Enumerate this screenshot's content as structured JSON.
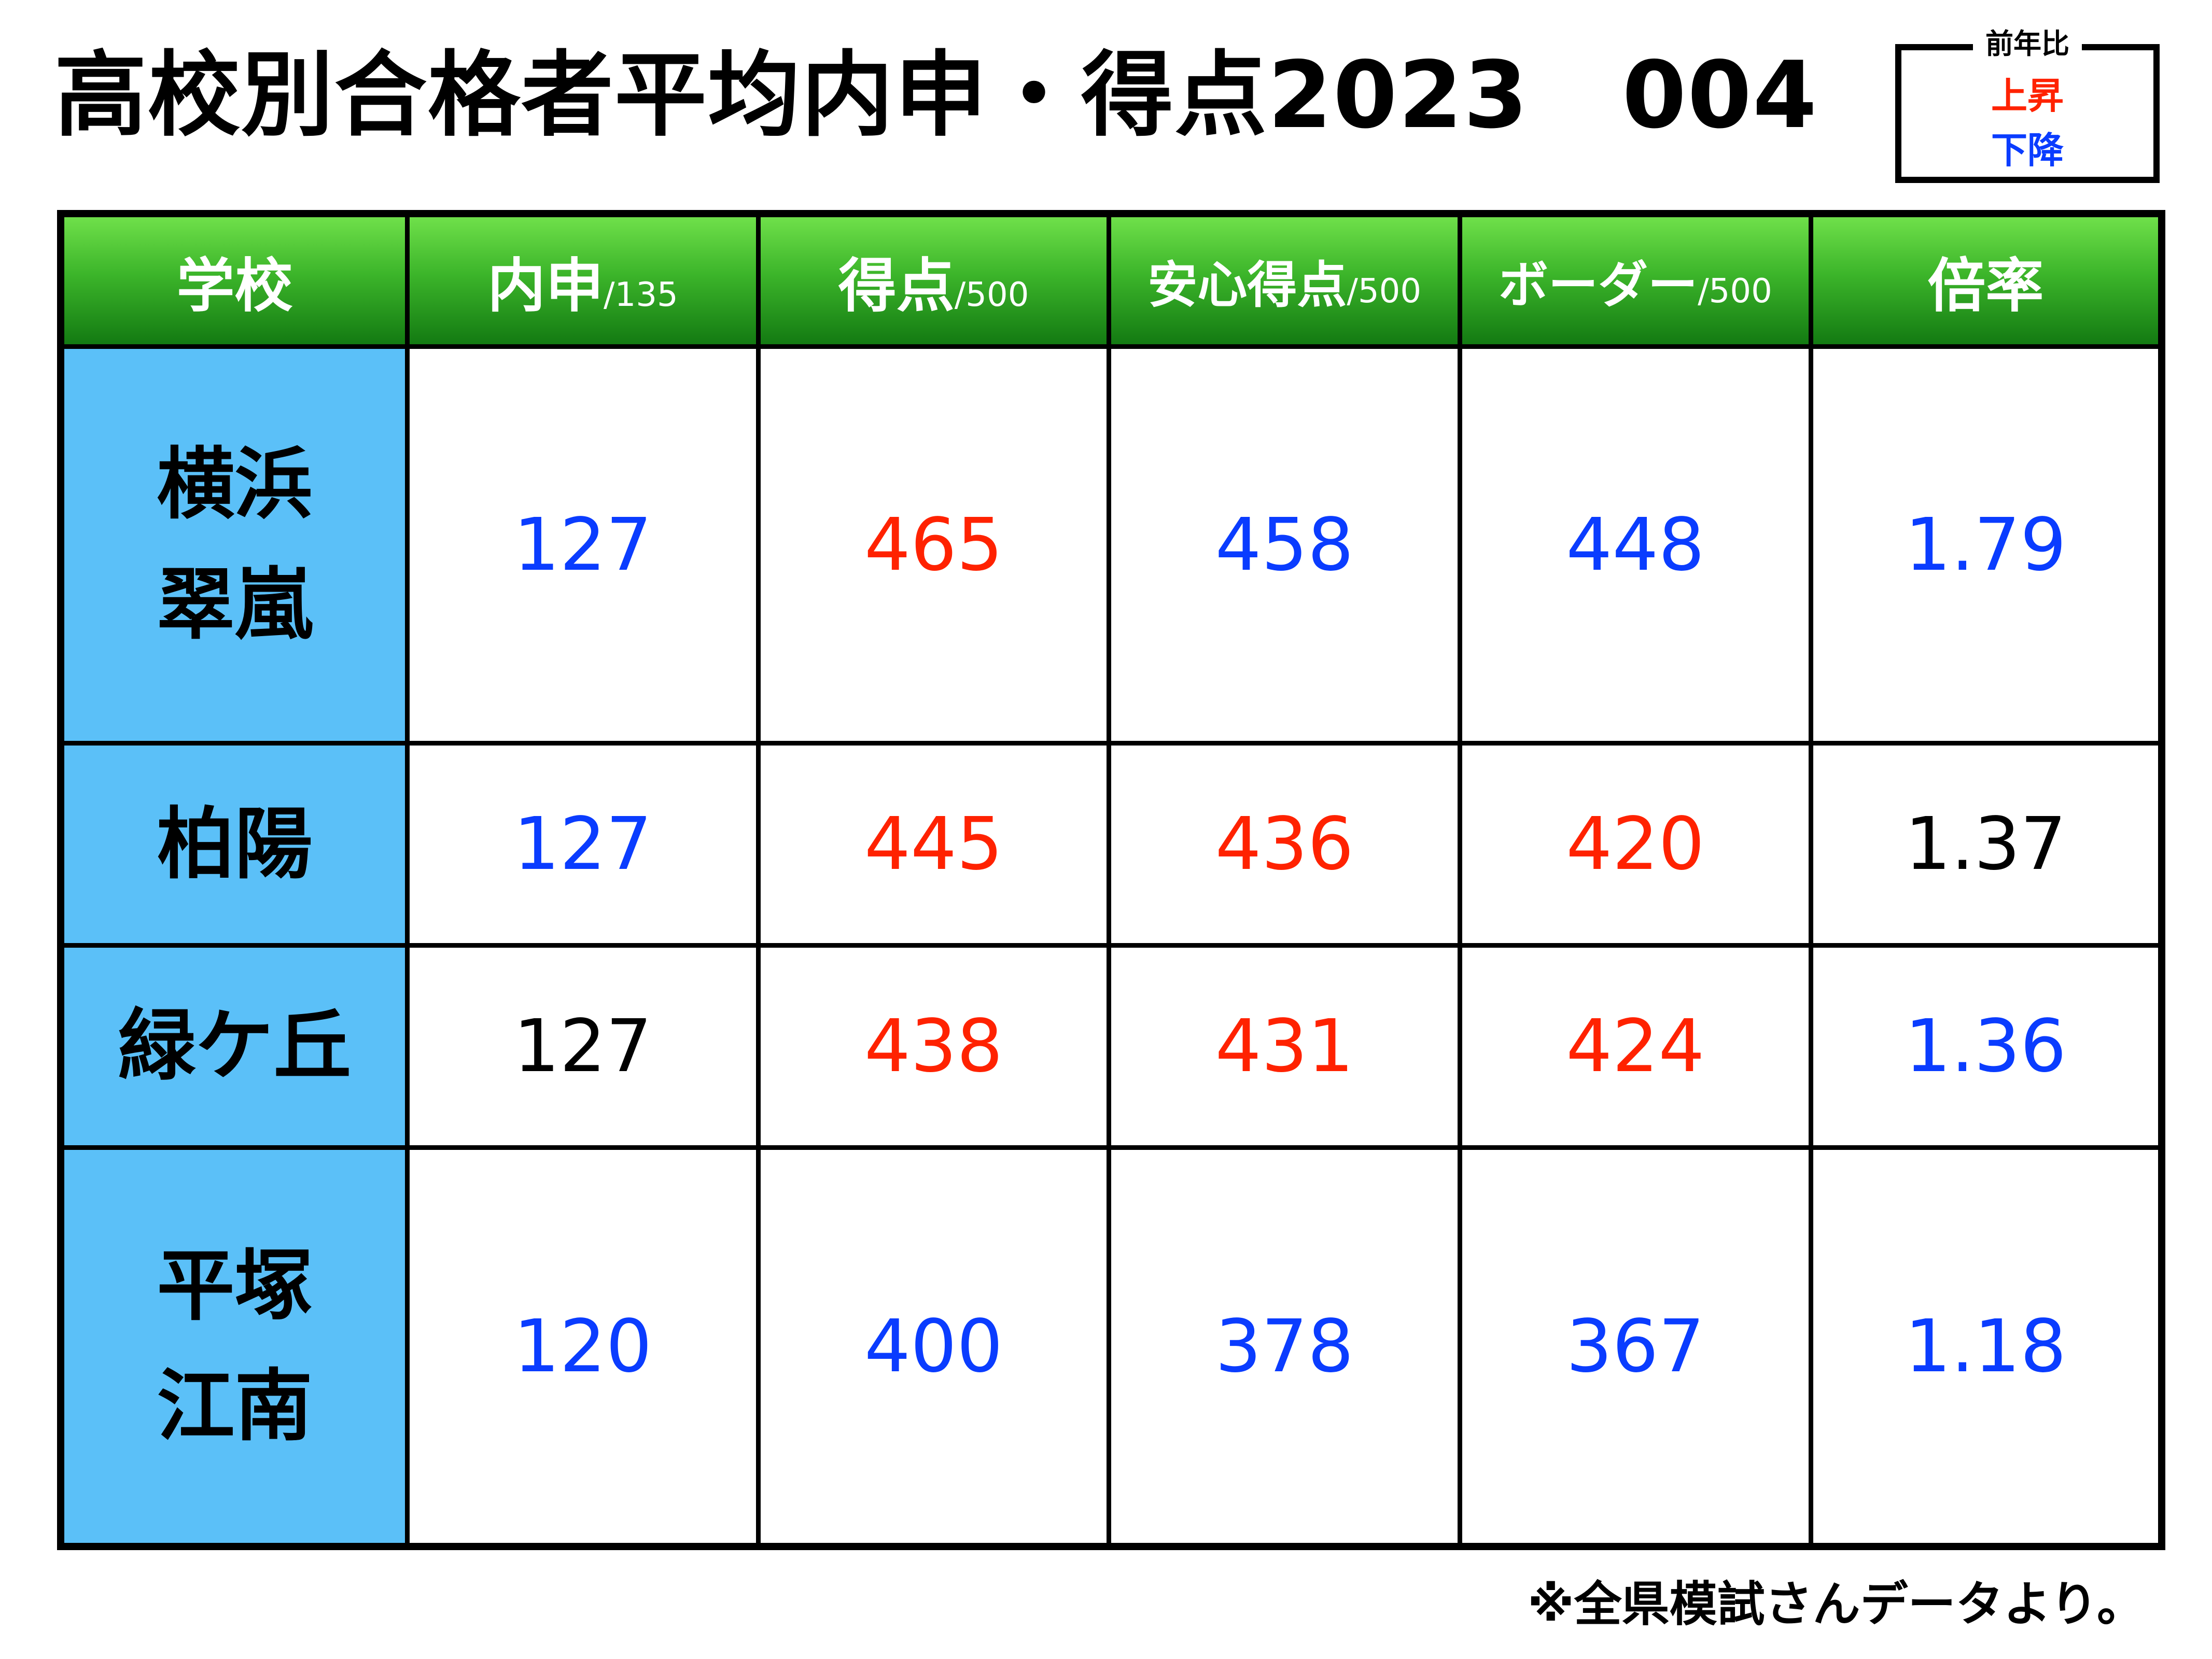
{
  "title": "高校別合格者平均内申・得点2023　004",
  "legend": {
    "heading": "前年比",
    "up_label": "上昇",
    "down_label": "下降",
    "colors": {
      "up": "#ff2200",
      "down": "#0a3cff",
      "same": "#000000"
    }
  },
  "table": {
    "headers": [
      {
        "label": "学校",
        "unit": ""
      },
      {
        "label": "内申",
        "unit": "/135"
      },
      {
        "label": "得点",
        "unit": "/500"
      },
      {
        "label": "安心得点",
        "unit": "/500"
      },
      {
        "label": "ボーダー",
        "unit": "/500"
      },
      {
        "label": "倍率",
        "unit": ""
      }
    ],
    "rows": [
      {
        "school_line1": "横浜",
        "school_line2": "翠嵐",
        "naishin": "127",
        "naishin_trend": "down",
        "score": "465",
        "score_trend": "up",
        "safe_score": "458",
        "safe_score_trend": "down",
        "border": "448",
        "border_trend": "down",
        "ratio": "1.79",
        "ratio_trend": "down"
      },
      {
        "school_line1": "柏陽",
        "school_line2": "",
        "naishin": "127",
        "naishin_trend": "down",
        "score": "445",
        "score_trend": "up",
        "safe_score": "436",
        "safe_score_trend": "up",
        "border": "420",
        "border_trend": "up",
        "ratio": "1.37",
        "ratio_trend": "same"
      },
      {
        "school_line1": "緑ケ丘",
        "school_line2": "",
        "naishin": "127",
        "naishin_trend": "same",
        "score": "438",
        "score_trend": "up",
        "safe_score": "431",
        "safe_score_trend": "up",
        "border": "424",
        "border_trend": "up",
        "ratio": "1.36",
        "ratio_trend": "down"
      },
      {
        "school_line1": "平塚",
        "school_line2": "江南",
        "naishin": "120",
        "naishin_trend": "down",
        "score": "400",
        "score_trend": "down",
        "safe_score": "378",
        "safe_score_trend": "down",
        "border": "367",
        "border_trend": "down",
        "ratio": "1.18",
        "ratio_trend": "down"
      }
    ]
  },
  "footnote": "※全県模試さんデータより。"
}
